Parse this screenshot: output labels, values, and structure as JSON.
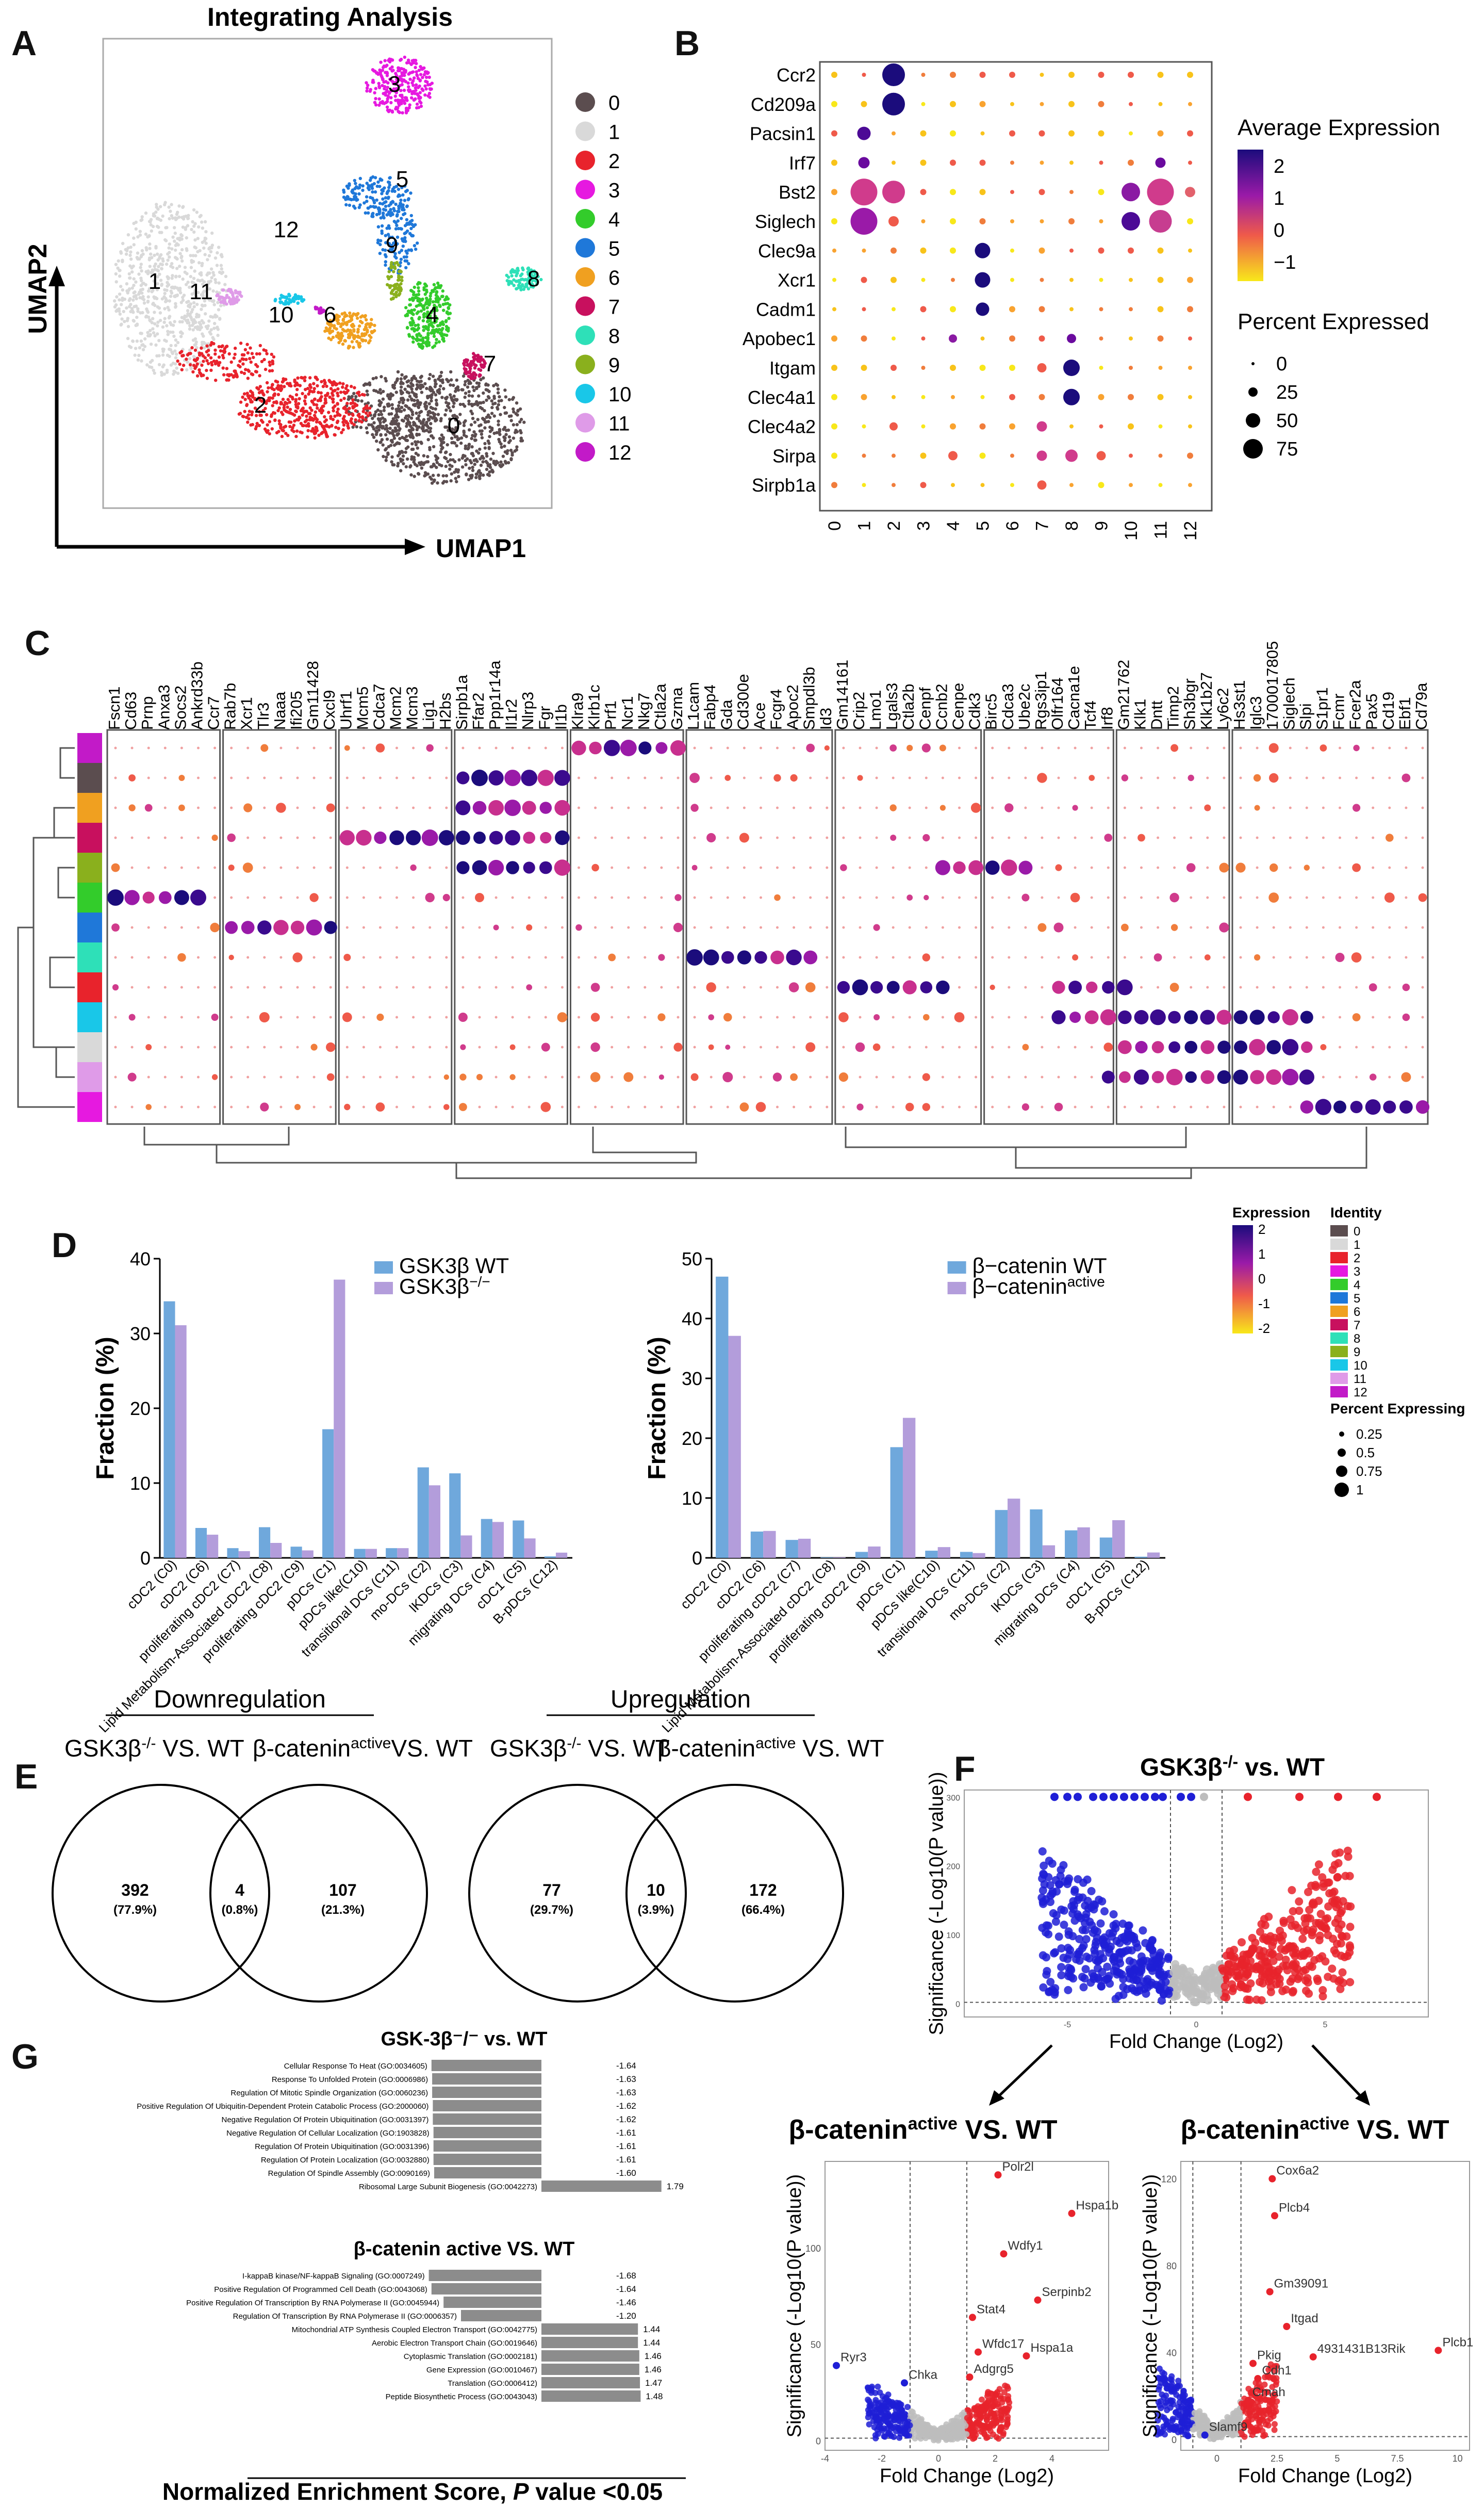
{
  "panel_labels": {
    "a": "A",
    "b": "B",
    "c": "C",
    "d": "D",
    "e": "E",
    "f": "F",
    "g": "G"
  },
  "colors": {
    "clusters": [
      "#5b4d4f",
      "#d9d9d9",
      "#e8232c",
      "#e619e0",
      "#33cc2b",
      "#1f78d9",
      "#f0a020",
      "#c8105e",
      "#2ee0b8",
      "#8ab01d",
      "#19c7e8",
      "#df9be8",
      "#c21ac8"
    ],
    "wt_bar": "#6fa8dc",
    "mut_bar": "#b39ddb",
    "down": "#1f1fd6",
    "up": "#e8232c",
    "ns": "#bdbdbd",
    "gsea_bar": "#8c8c8c"
  },
  "umap": {
    "title": "Integrating Analysis",
    "xlabel": "UMAP1",
    "ylabel": "UMAP2",
    "cluster_labels": [
      "0",
      "1",
      "2",
      "3",
      "4",
      "5",
      "6",
      "7",
      "8",
      "9",
      "10",
      "11",
      "12"
    ],
    "legend": [
      "0",
      "1",
      "2",
      "3",
      "4",
      "5",
      "6",
      "7",
      "8",
      "9",
      "10",
      "11",
      "12"
    ]
  },
  "dotplot_b": {
    "genes": [
      "Ccr2",
      "Cd209a",
      "Pacsin1",
      "Irf7",
      "Bst2",
      "Siglech",
      "Clec9a",
      "Xcr1",
      "Cadm1",
      "Apobec1",
      "Itgam",
      "Clec4a1",
      "Clec4a2",
      "Sirpa",
      "Sirpb1a"
    ],
    "clusters": [
      "0",
      "1",
      "2",
      "3",
      "4",
      "5",
      "6",
      "7",
      "8",
      "9",
      "10",
      "11",
      "12"
    ],
    "expr_title": "Average Expression",
    "expr_ticks": [
      "2",
      "1",
      "0",
      "−1"
    ],
    "pct_title": "Percent Expressed",
    "pct_ticks": [
      "0",
      "25",
      "50",
      "75"
    ]
  },
  "dotplot_c": {
    "genes": [
      "Fscn1",
      "Cd63",
      "Prnp",
      "Anxa3",
      "Socs2",
      "Ankrd33b",
      "Ccr7",
      "Rab7b",
      "Xcr1",
      "Tlr3",
      "Naaa",
      "Ifi205",
      "Gm11428",
      "Cxcl9",
      "Uhrf1",
      "Mcm5",
      "Cdca7",
      "Mcm2",
      "Mcm3",
      "Lig1",
      "H2bs",
      "Sirpb1a",
      "Ffar2",
      "Ppp1r14a",
      "Il1r2",
      "Nlrp3",
      "Fgr",
      "Il1b",
      "Klra9",
      "Klrb1c",
      "Prf1",
      "Ncr1",
      "Nkg7",
      "Ctla2a",
      "Gzma",
      "L1cam",
      "Fabp4",
      "Gda",
      "Cd300e",
      "Ace",
      "Fcgr4",
      "Apoc2",
      "Smpdl3b",
      "Id3",
      "Gm14161",
      "Crip2",
      "Lmo1",
      "Lgals3",
      "Ctla2b",
      "Cenpf",
      "Ccnb2",
      "Cenpe",
      "Cdk3",
      "Birc5",
      "Cdca3",
      "Ube2c",
      "Rgs3ip1",
      "Olfr164",
      "Cacna1e",
      "Tcf4",
      "Irf8",
      "Gm21762",
      "Klk1",
      "Dntt",
      "Timp2",
      "Sh3bgr",
      "Klk1b27",
      "Ly6c2",
      "Hs3st1",
      "Iglc3",
      "1700017805",
      "Siglech",
      "Slpi",
      "S1pr1",
      "Fcmr",
      "Fcer2a",
      "Pax5",
      "Cd19",
      "Ebf1",
      "Cd79a"
    ],
    "row_order": [
      "12",
      "0",
      "6",
      "7",
      "9",
      "4",
      "5",
      "8",
      "2",
      "10",
      "1",
      "11",
      "3"
    ],
    "legend_expr_title": "Expression",
    "legend_expr_ticks": [
      "2",
      "1",
      "0",
      "-1",
      "-2"
    ],
    "legend_identity_title": "Identity",
    "legend_identity": [
      "0",
      "1",
      "2",
      "3",
      "4",
      "5",
      "6",
      "7",
      "8",
      "9",
      "10",
      "11",
      "12"
    ],
    "legend_pct_title": "Percent Expressing",
    "legend_pct": [
      "0.25",
      "0.5",
      "0.75",
      "1"
    ]
  },
  "chart_data": [
    {
      "type": "bar",
      "panel": "D-left",
      "ylabel": "Fraction (%)",
      "ylim": [
        0,
        40
      ],
      "yticks": [
        0,
        10,
        20,
        30,
        40
      ],
      "categories": [
        "cDC2 (C0)",
        "cDC2 (C6)",
        "proliferating cDC2 (C7)",
        "Lipid Metabolism-Associated cDC2 (C8)",
        "proliferating cDC2 (C9)",
        "pDCs (C1)",
        "pDCs like(C10)",
        "transitional DCs (C11)",
        "mo-DCs (C2)",
        "lKDCs (C3)",
        "migrating DCs (C4)",
        "cDC1 (C5)",
        "B-pDCs (C12)"
      ],
      "series": [
        {
          "name": "GSK3β WT",
          "values": [
            34.3,
            4.0,
            1.3,
            4.1,
            1.5,
            17.2,
            1.2,
            1.3,
            12.1,
            11.3,
            5.2,
            5.0,
            0.2
          ]
        },
        {
          "name": "GSK3β⁻/⁻",
          "values": [
            31.1,
            3.1,
            0.9,
            2.0,
            1.0,
            37.2,
            1.2,
            1.3,
            9.7,
            3.0,
            4.8,
            2.6,
            0.7
          ]
        }
      ]
    },
    {
      "type": "bar",
      "panel": "D-right",
      "ylabel": "Fraction (%)",
      "ylim": [
        0,
        50
      ],
      "yticks": [
        0,
        10,
        20,
        30,
        40,
        50
      ],
      "categories": [
        "cDC2 (C0)",
        "cDC2 (C6)",
        "proliferating cDC2 (C7)",
        "Lipid Metabolism-Associated cDC2 (C8)",
        "proliferating cDC2 (C9)",
        "pDCs (C1)",
        "pDCs like(C10)",
        "transitional DCs (C11)",
        "mo-DCs (C2)",
        "lKDCs (C3)",
        "migrating DCs (C4)",
        "cDC1 (C5)",
        "B-pDCs (C12)"
      ],
      "series": [
        {
          "name": "β−catenin WT",
          "values": [
            47.0,
            4.4,
            3.0,
            0.1,
            1.0,
            18.5,
            1.2,
            1.0,
            8.0,
            8.1,
            4.6,
            3.4,
            0.2
          ]
        },
        {
          "name": "β−catenin active",
          "values": [
            37.1,
            4.5,
            3.2,
            0.1,
            1.9,
            23.4,
            1.8,
            0.8,
            9.9,
            2.1,
            5.1,
            6.3,
            0.9
          ]
        }
      ]
    },
    {
      "type": "bar",
      "panel": "G-top",
      "title": "GSK-3β⁻/⁻ vs. WT",
      "categories": [
        "Cellular Response To Heat (GO:0034605)",
        "Response To Unfolded Protein (GO:0006986)",
        "Regulation Of Mitotic Spindle Organization (GO:0060236)",
        "Positive Regulation Of Ubiquitin-Dependent Protein Catabolic Process (GO:2000060)",
        "Negative Regulation Of Protein Ubiquitination (GO:0031397)",
        "Negative Regulation Of Cellular Localization (GO:1903828)",
        "Regulation Of Protein Ubiquitination (GO:0031396)",
        "Regulation Of Protein Localization (GO:0032880)",
        "Regulation Of Spindle Assembly (GO:0090169)",
        "Ribosomal Large Subunit Biogenesis (GO:0042273)"
      ],
      "values": [
        -1.64,
        -1.63,
        -1.63,
        -1.62,
        -1.62,
        -1.61,
        -1.61,
        -1.61,
        -1.6,
        1.79
      ],
      "labels": [
        "-1.64",
        "-1.63",
        "-1.63",
        "-1.62",
        "-1.62",
        "-1.61",
        "-1.61",
        "-1.61",
        "-1.60",
        "1.79"
      ]
    },
    {
      "type": "bar",
      "panel": "G-bottom",
      "title": "β-catenin active VS. WT",
      "categories": [
        "I-kappaB kinase/NF-kappaB Signaling (GO:0007249)",
        "Positive Regulation Of Programmed Cell Death (GO:0043068)",
        "Positive Regulation Of Transcription By RNA Polymerase II (GO:0045944)",
        "Regulation Of Transcription By RNA Polymerase II (GO:0006357)",
        "Mitochondrial ATP Synthesis Coupled Electron Transport (GO:0042775)",
        "Aerobic Electron Transport Chain (GO:0019646)",
        "Cytoplasmic Translation (GO:0002181)",
        "Gene Expression (GO:0010467)",
        "Translation (GO:0006412)",
        "Peptide Biosynthetic Process (GO:0043043)"
      ],
      "values": [
        -1.68,
        -1.64,
        -1.46,
        -1.2,
        1.44,
        1.44,
        1.46,
        1.46,
        1.47,
        1.48
      ],
      "labels": [
        "-1.68",
        "-1.64",
        "-1.46",
        "-1.20",
        "1.44",
        "1.44",
        "1.46",
        "1.46",
        "1.47",
        "1.48"
      ],
      "xlabel": "Normalized Enrichment Score, P value <0.05"
    },
    {
      "type": "scatter",
      "panel": "F-top",
      "title": "GSK3β-/- vs. WT",
      "xlabel": "Fold Change (Log2)",
      "ylabel": "Significance (-Log10(P value))",
      "xlim": [
        -9,
        9
      ],
      "ylim": [
        -20,
        310
      ],
      "xticks": [
        -5,
        0,
        5
      ],
      "yticks": [
        0,
        100,
        200,
        300
      ]
    },
    {
      "type": "scatter",
      "panel": "F-left",
      "title": "β-catenin active VS. WT",
      "xlabel": "Fold Change (Log2)",
      "ylabel": "Significance (-Log10(P value))",
      "xlim": [
        -4,
        6
      ],
      "ylim": [
        -5,
        145
      ],
      "xticks": [
        -4,
        -2,
        0,
        2,
        4
      ],
      "yticks": [
        0,
        50,
        100
      ],
      "labeled_points": [
        {
          "label": "Polr2l",
          "x": 2.1,
          "y": 138
        },
        {
          "label": "Hspa1b",
          "x": 4.7,
          "y": 118
        },
        {
          "label": "Wdfy1",
          "x": 2.3,
          "y": 97
        },
        {
          "label": "Serpinb2",
          "x": 3.5,
          "y": 73
        },
        {
          "label": "Stat4",
          "x": 1.2,
          "y": 64
        },
        {
          "label": "Wfdc17",
          "x": 1.4,
          "y": 46
        },
        {
          "label": "Hspa1a",
          "x": 3.1,
          "y": 44
        },
        {
          "label": "Adgrg5",
          "x": 1.1,
          "y": 33
        },
        {
          "label": "Ryr3",
          "x": -3.6,
          "y": 39
        },
        {
          "label": "Chka",
          "x": -1.2,
          "y": 30
        }
      ]
    },
    {
      "type": "scatter",
      "panel": "F-right",
      "title": "β-catenin active VS. WT",
      "xlabel": "Fold Change (Log2)",
      "ylabel": "Significance (-Log10(P value))",
      "xlim": [
        -1.5,
        10.5
      ],
      "ylim": [
        -5,
        128
      ],
      "xticks": [
        0,
        2.5,
        5,
        7.5,
        10
      ],
      "yticks": [
        0,
        40,
        80,
        120
      ],
      "labeled_points": [
        {
          "label": "Cox6a2",
          "x": 2.3,
          "y": 120
        },
        {
          "label": "Plcb4",
          "x": 2.4,
          "y": 103
        },
        {
          "label": "Gm39091",
          "x": 2.2,
          "y": 68
        },
        {
          "label": "Itgad",
          "x": 2.9,
          "y": 52
        },
        {
          "label": "Plcb1",
          "x": 9.2,
          "y": 41
        },
        {
          "label": "Pkig",
          "x": 1.5,
          "y": 35
        },
        {
          "label": "4931431B13Rik",
          "x": 4.0,
          "y": 38
        },
        {
          "label": "Cdh1",
          "x": 1.7,
          "y": 28
        },
        {
          "label": "Cmah",
          "x": 1.3,
          "y": 18
        },
        {
          "label": "Slamf9",
          "x": -0.5,
          "y": 2
        }
      ]
    }
  ],
  "legend_d": {
    "gsk_wt": "GSK3β WT",
    "gsk_ko": "GSK3β",
    "gsk_ko_sup": "−/−",
    "cat_wt": "β−catenin WT",
    "cat_act": "β−catenin",
    "cat_act_sup": "active"
  },
  "venn": {
    "down_title": "Downregulation",
    "up_title": "Upregulation",
    "down_left_label": "GSK3β",
    "down_left_sup": "-/-",
    "down_left_tail": " VS. WT",
    "down_right_label": "β-catenin",
    "down_right_sup": "active",
    "down_right_tail": "VS. WT",
    "up_left_label": "GSK3β",
    "up_left_sup": "-/-",
    "up_left_tail": " VS. WT",
    "up_right_label": "β-catenin",
    "up_right_sup": "active",
    "up_right_tail": " VS. WT",
    "down_left": "392",
    "down_left_pct": "(77.9%)",
    "down_mid": "4",
    "down_mid_pct": "(0.8%)",
    "down_right": "107",
    "down_right_pct": "(21.3%)",
    "up_left": "77",
    "up_left_pct": "(29.7%)",
    "up_mid": "10",
    "up_mid_pct": "(3.9%)",
    "up_right": "172",
    "up_right_pct": "(66.4%)"
  },
  "gsea_footer": {
    "pre": "Normalized Enrichment Score, ",
    "p": "P",
    "post": " value <0.05"
  },
  "volcano_titles": {
    "top_pre": "GSK3β",
    "top_sup": "-/-",
    "top_post": " vs. WT",
    "left_pre": "β-catenin",
    "left_sup": "active",
    "left_post": " VS. WT",
    "right_pre": "β-catenin",
    "right_sup": "active",
    "right_post": " VS. WT"
  }
}
